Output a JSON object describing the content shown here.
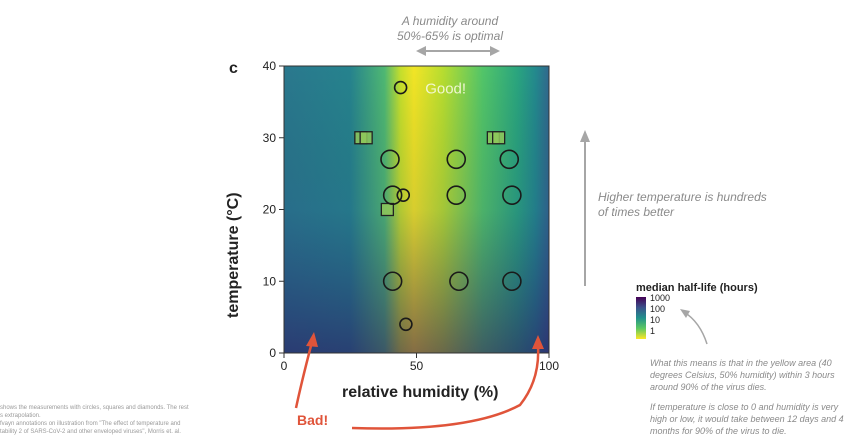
{
  "chart_data": {
    "type": "scatter",
    "panel_label": "c",
    "xlabel": "relative humidity (%)",
    "ylabel": "temperature (°C)",
    "xlim": [
      0,
      100
    ],
    "ylim": [
      0,
      40
    ],
    "x_ticks": [
      0,
      50,
      100
    ],
    "y_ticks": [
      0,
      10,
      20,
      30,
      40
    ],
    "heatmap_note": "Good!",
    "circles": [
      {
        "x": 44,
        "y": 37,
        "size": "small"
      },
      {
        "x": 40,
        "y": 27,
        "size": "large"
      },
      {
        "x": 65,
        "y": 27,
        "size": "large"
      },
      {
        "x": 85,
        "y": 27,
        "size": "large"
      },
      {
        "x": 41,
        "y": 22,
        "size": "large"
      },
      {
        "x": 45,
        "y": 22,
        "size": "small"
      },
      {
        "x": 65,
        "y": 22,
        "size": "large"
      },
      {
        "x": 86,
        "y": 22,
        "size": "large"
      },
      {
        "x": 41,
        "y": 10,
        "size": "large"
      },
      {
        "x": 66,
        "y": 10,
        "size": "large"
      },
      {
        "x": 86,
        "y": 10,
        "size": "large"
      },
      {
        "x": 46,
        "y": 4,
        "size": "small"
      }
    ],
    "squares": [
      {
        "x": 29,
        "y": 30
      },
      {
        "x": 31,
        "y": 30
      },
      {
        "x": 79,
        "y": 30
      },
      {
        "x": 81,
        "y": 30
      },
      {
        "x": 39,
        "y": 20
      }
    ],
    "colorbar": {
      "title": "median half-life (hours)",
      "ticks": [
        "1000",
        "100",
        "10",
        "1"
      ],
      "colors": [
        "#440154",
        "#3b528b",
        "#21918c",
        "#5ec962",
        "#fde725"
      ]
    }
  },
  "annotations": {
    "top": "A humidity around 50%-65% is optimal",
    "right": "Higher temperature is hundreds of times better",
    "bad": "Bad!",
    "bottom_1": "What this means is that in the yellow area (40 degrees Celsius, 50% humidity) within 3 hours around 90% of the virus dies.",
    "bottom_2": "If temperature is close to 0 and humidity is very high or low, it would take between 12 days and 4 months for 90% of the virus to die."
  },
  "footer": {
    "line1": "shows the measurements with circles, squares and diamonds. The rest",
    "line2": "s extrapolation.",
    "line3": "fvayn annotations on illustration from \"The effect of temperature and",
    "line4": "tability 2 of SARS-CoV-2 and other enveloped viruses\", Morris et. al."
  },
  "colors": {
    "arrow_red": "#e0543a",
    "arrow_gray": "#a6a6a6"
  }
}
